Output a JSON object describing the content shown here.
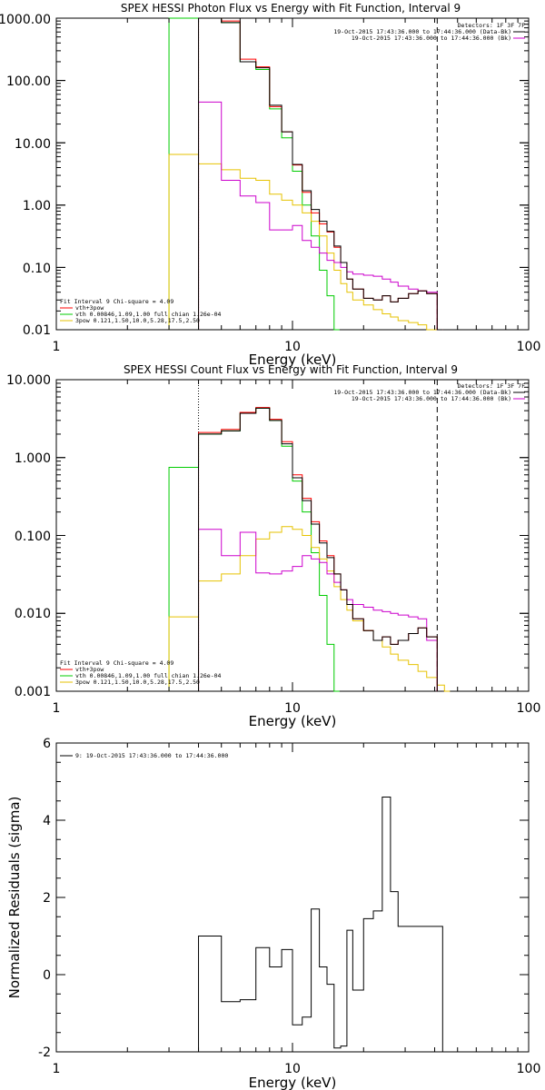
{
  "chart_data": [
    {
      "type": "line",
      "title": "SPEX HESSI Photon Flux vs Energy with Fit Function, Interval 9",
      "xlabel": "Energy (keV)",
      "ylabel": "",
      "xscale": "log",
      "yscale": "log",
      "xlim": [
        1,
        100
      ],
      "ylim": [
        0.01,
        1000
      ],
      "xtick_labels": [
        "1",
        "10",
        "100"
      ],
      "ytick_labels": [
        "0.01",
        "0.10",
        "1.00",
        "10.00",
        "100.00",
        "1000.00"
      ],
      "vlines": {
        "dotted": 4,
        "dashed": 41
      },
      "annotation_right": [
        "Detectors: 1F 3F 7F",
        "19-Oct-2015 17:43:36.000 to 17:44:36.000 (Data-Bk)",
        "19-Oct-2015 17:43:36.000 to 17:44:36.000 (Bk)"
      ],
      "legend_left": [
        "Fit Interval 9   Chi-square = 4.09",
        "vth+3pow",
        "vth 0.00846,1.09,1.00  full chian 1.26e-04",
        "3pow 0.121,1.50,10.0,5.28,17.5,2.50"
      ],
      "colors": {
        "data_minus_bk": "#000000",
        "total": "#ff0000",
        "vth": "#00cc00",
        "pow": "#e6c200",
        "bk": "#cc00cc"
      },
      "series": [
        {
          "name": "Data-Bk",
          "x": [
            4,
            5,
            6,
            7,
            8,
            9,
            10,
            11,
            12,
            13,
            14,
            15,
            16,
            17,
            18,
            20,
            22,
            24,
            26,
            28,
            31,
            34,
            37,
            41
          ],
          "y": [
            1000,
            850,
            200,
            160,
            40,
            15,
            4.5,
            1.7,
            0.85,
            0.55,
            0.38,
            0.22,
            0.12,
            0.065,
            0.045,
            0.032,
            0.03,
            0.035,
            0.028,
            0.032,
            0.038,
            0.042,
            0.038,
            0.01
          ]
        },
        {
          "name": "vth+3pow",
          "x": [
            4,
            5,
            6,
            7,
            8,
            9,
            10,
            11,
            12,
            13,
            14,
            15,
            16,
            17,
            18,
            20,
            22,
            24,
            26,
            28,
            31,
            34,
            37,
            41
          ],
          "y": [
            1000,
            900,
            220,
            165,
            38,
            15,
            4.4,
            1.6,
            0.75,
            0.5,
            0.37,
            0.21,
            0.12,
            0.065,
            0.045,
            0.032,
            0.03,
            0.035,
            0.028,
            0.032,
            0.038,
            0.042,
            0.038,
            0.01
          ]
        },
        {
          "name": "vth",
          "x": [
            3,
            4,
            5,
            6,
            7,
            8,
            9,
            10,
            11,
            12,
            13,
            14,
            15
          ],
          "y": [
            1000,
            1000,
            850,
            200,
            150,
            35,
            12,
            3.5,
            1.0,
            0.32,
            0.09,
            0.035,
            0.01
          ]
        },
        {
          "name": "3pow",
          "x": [
            3,
            4,
            5,
            6,
            7,
            8,
            9,
            10,
            11,
            12,
            13,
            14,
            15,
            16,
            17,
            18,
            20,
            22,
            24,
            26,
            28,
            31,
            34,
            37,
            41
          ],
          "y": [
            6.5,
            4.6,
            3.7,
            2.7,
            2.5,
            1.5,
            1.2,
            1.0,
            0.75,
            0.55,
            0.32,
            0.17,
            0.09,
            0.055,
            0.04,
            0.03,
            0.025,
            0.021,
            0.018,
            0.016,
            0.014,
            0.013,
            0.012,
            0.01,
            0.01
          ]
        },
        {
          "name": "Bk",
          "x": [
            4,
            5,
            6,
            7,
            8,
            9,
            10,
            11,
            12,
            13,
            14,
            15,
            16,
            17,
            18,
            20,
            22,
            24,
            26,
            28,
            31,
            34,
            37,
            41
          ],
          "y": [
            45,
            2.5,
            1.4,
            1.1,
            0.4,
            0.4,
            0.47,
            0.27,
            0.21,
            0.17,
            0.13,
            0.12,
            0.1,
            0.085,
            0.078,
            0.075,
            0.072,
            0.065,
            0.058,
            0.05,
            0.045,
            0.042,
            0.04,
            0.01
          ]
        }
      ]
    },
    {
      "type": "line",
      "title": "SPEX HESSI Count Flux vs Energy with Fit Function, Interval 9",
      "xlabel": "Energy (keV)",
      "ylabel": "",
      "xscale": "log",
      "yscale": "log",
      "xlim": [
        1,
        100
      ],
      "ylim": [
        0.001,
        10
      ],
      "xtick_labels": [
        "1",
        "10",
        "100"
      ],
      "ytick_labels": [
        "0.001",
        "0.010",
        "0.100",
        "1.000",
        "10.000"
      ],
      "vlines": {
        "dotted": 4,
        "dashed": 41
      },
      "annotation_right": [
        "Detectors: 1F 3F 7F",
        "19-Oct-2015 17:43:36.000 to 17:44:36.000 (Data-Bk)",
        "19-Oct-2015 17:43:36.000 to 17:44:36.000 (Bk)"
      ],
      "legend_left": [
        "Fit Interval 9   Chi-square = 4.09",
        "vth+3pow",
        "vth 0.00846,1.09,1.00  full chian 1.26e-04",
        "3pow 0.121,1.50,10.0,5.28,17.5,2.50"
      ],
      "series": [
        {
          "name": "Data-Bk",
          "x": [
            4,
            5,
            6,
            7,
            8,
            9,
            10,
            11,
            12,
            13,
            14,
            15,
            16,
            17,
            18,
            20,
            22,
            24,
            26,
            28,
            31,
            34,
            37,
            41
          ],
          "y": [
            2.0,
            2.2,
            3.7,
            4.3,
            3.0,
            1.5,
            0.55,
            0.28,
            0.14,
            0.08,
            0.052,
            0.032,
            0.02,
            0.013,
            0.0085,
            0.006,
            0.0045,
            0.005,
            0.004,
            0.0045,
            0.0055,
            0.0065,
            0.005,
            0.001
          ]
        },
        {
          "name": "vth+3pow",
          "x": [
            4,
            5,
            6,
            7,
            8,
            9,
            10,
            11,
            12,
            13,
            14,
            15,
            16,
            17,
            18,
            20,
            22,
            24,
            26,
            28,
            31,
            34,
            37,
            41
          ],
          "y": [
            2.1,
            2.3,
            3.8,
            4.4,
            3.1,
            1.6,
            0.6,
            0.3,
            0.15,
            0.085,
            0.055,
            0.032,
            0.02,
            0.013,
            0.0085,
            0.006,
            0.0045,
            0.005,
            0.004,
            0.0045,
            0.0055,
            0.0065,
            0.005,
            0.001
          ]
        },
        {
          "name": "vth",
          "x": [
            3,
            4,
            5,
            6,
            7,
            8,
            9,
            10,
            11,
            12,
            13,
            14,
            15
          ],
          "y": [
            0.75,
            2.0,
            2.2,
            3.7,
            4.3,
            3.0,
            1.4,
            0.5,
            0.2,
            0.06,
            0.017,
            0.004,
            0.001
          ]
        },
        {
          "name": "3pow",
          "x": [
            3,
            4,
            5,
            6,
            7,
            8,
            9,
            10,
            11,
            12,
            13,
            14,
            15,
            16,
            17,
            18,
            20,
            22,
            24,
            26,
            28,
            31,
            34,
            37,
            41,
            44
          ],
          "y": [
            0.009,
            0.026,
            0.032,
            0.055,
            0.09,
            0.11,
            0.13,
            0.12,
            0.1,
            0.07,
            0.05,
            0.035,
            0.022,
            0.015,
            0.011,
            0.008,
            0.006,
            0.0045,
            0.0037,
            0.003,
            0.0025,
            0.0022,
            0.0018,
            0.0015,
            0.0012,
            0.001
          ]
        },
        {
          "name": "Bk",
          "x": [
            4,
            5,
            6,
            7,
            8,
            9,
            10,
            11,
            12,
            13,
            14,
            15,
            16,
            17,
            18,
            20,
            22,
            24,
            26,
            28,
            31,
            34,
            37,
            41
          ],
          "y": [
            0.12,
            0.055,
            0.11,
            0.033,
            0.032,
            0.035,
            0.04,
            0.055,
            0.05,
            0.045,
            0.032,
            0.025,
            0.02,
            0.015,
            0.013,
            0.012,
            0.011,
            0.0105,
            0.01,
            0.0095,
            0.009,
            0.0085,
            0.0045,
            0.001
          ]
        }
      ]
    },
    {
      "type": "line",
      "title": "",
      "xlabel": "Energy (keV)",
      "ylabel": "Normalized Residuals (sigma)",
      "xscale": "log",
      "yscale": "linear",
      "xlim": [
        1,
        100
      ],
      "ylim": [
        -2,
        6
      ],
      "xtick_labels": [
        "1",
        "10",
        "100"
      ],
      "ytick_labels": [
        "-2",
        "0",
        "2",
        "4",
        "6"
      ],
      "legend_left": [
        "9: 19-Oct-2015 17:43:36.000 to 17:44:36.000"
      ],
      "series": [
        {
          "name": "residuals",
          "x": [
            4,
            5,
            6,
            7,
            8,
            9,
            10,
            11,
            12,
            13,
            14,
            15,
            16,
            17,
            18,
            20,
            22,
            24,
            26,
            28,
            31,
            34,
            37,
            41
          ],
          "y": [
            1.0,
            -0.7,
            -0.65,
            0.7,
            0.2,
            0.65,
            -1.3,
            -1.1,
            1.7,
            0.2,
            -0.25,
            -1.9,
            -1.85,
            1.15,
            -0.4,
            1.45,
            1.65,
            4.6,
            2.15,
            1.25,
            1.25,
            1.25,
            1.25,
            1.25
          ]
        }
      ]
    }
  ]
}
